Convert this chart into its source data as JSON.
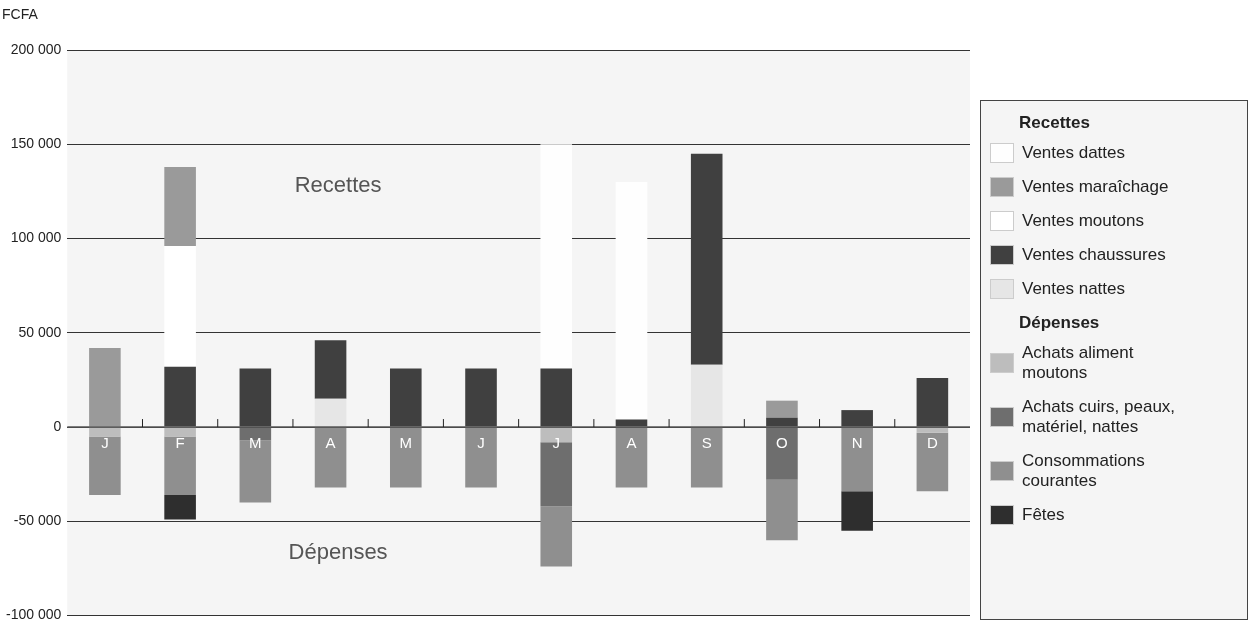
{
  "chart_data": {
    "type": "bar",
    "stacked": true,
    "ylabel": "FCFA",
    "categories": [
      "J",
      "F",
      "M",
      "A",
      "M",
      "J",
      "J",
      "A",
      "S",
      "O",
      "N",
      "D"
    ],
    "ylim": [
      -100000,
      200000
    ],
    "yticks": [
      {
        "value": -100000,
        "label": "-100 000"
      },
      {
        "value": -50000,
        "label": "-50 000"
      },
      {
        "value": 0,
        "label": "0"
      },
      {
        "value": 50000,
        "label": "50 000"
      },
      {
        "value": 100000,
        "label": "100 000"
      },
      {
        "value": 150000,
        "label": "150 000"
      },
      {
        "value": 200000,
        "label": "200 000"
      }
    ],
    "grid": "y",
    "legend": "right",
    "annotations": [
      "Recettes",
      "Dépenses"
    ],
    "series": [
      {
        "name": "Ventes nattes",
        "color": "#e6e6e6",
        "values": [
          null,
          null,
          null,
          15000,
          null,
          null,
          null,
          null,
          33000,
          null,
          null,
          null
        ]
      },
      {
        "name": "Ventes chaussures",
        "color": "#404040",
        "values": [
          null,
          32000,
          31000,
          31000,
          31000,
          31000,
          31000,
          4000,
          112000,
          5000,
          9000,
          26000
        ]
      },
      {
        "name": "Ventes moutons",
        "color": "#ffffff",
        "values": [
          null,
          64000,
          null,
          null,
          null,
          null,
          null,
          null,
          null,
          null,
          null,
          null
        ]
      },
      {
        "name": "Ventes maraîchage",
        "color": "#9a9a9a",
        "values": [
          42000,
          42000,
          null,
          null,
          null,
          null,
          null,
          null,
          null,
          9000,
          null,
          null
        ]
      },
      {
        "name": "Ventes dattes",
        "color": "#fefefe",
        "values": [
          null,
          null,
          null,
          null,
          null,
          null,
          119000,
          126000,
          null,
          null,
          null,
          null
        ]
      },
      {
        "name": "Achats aliment moutons",
        "color": "#bdbdbd",
        "values": [
          -5000,
          -5000,
          null,
          null,
          null,
          null,
          -8000,
          null,
          null,
          null,
          null,
          -3000
        ]
      },
      {
        "name": "Achats cuirs, peaux, matériel, nattes",
        "color": "#6e6e6e",
        "values": [
          null,
          null,
          -7000,
          null,
          null,
          null,
          -34000,
          null,
          null,
          -28000,
          null,
          null
        ]
      },
      {
        "name": "Consommations courantes",
        "color": "#8f8f8f",
        "values": [
          -31000,
          -31000,
          -33000,
          -32000,
          -32000,
          -32000,
          -32000,
          -32000,
          -32000,
          -32000,
          -34000,
          -31000
        ]
      },
      {
        "name": "Fêtes",
        "color": "#2e2e2e",
        "values": [
          null,
          -13000,
          null,
          null,
          null,
          null,
          null,
          null,
          null,
          null,
          -21000,
          null
        ]
      }
    ]
  }
}
